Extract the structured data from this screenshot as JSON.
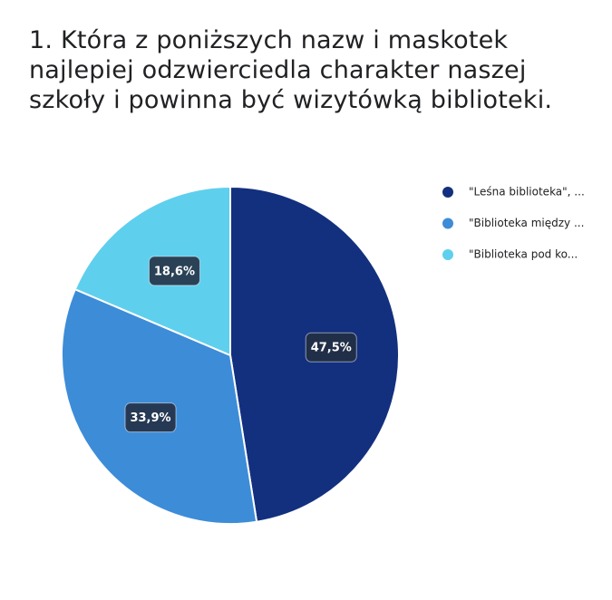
{
  "chart_data": {
    "type": "pie",
    "title": "1. Która z poniższych nazw i maskotek najlepiej odzwierciedla charakter naszej szkoły i powinna być wizytówką biblioteki.",
    "categories": [
      "\"Leśna biblioteka\", ...",
      "\"Biblioteka między ...",
      "\"Biblioteka pod ko..."
    ],
    "values": [
      47.5,
      33.9,
      18.6
    ],
    "value_labels": [
      "47,5%",
      "33,9%",
      "18,6%"
    ],
    "colors": [
      "#13307f",
      "#3d8cd8",
      "#5fcfee"
    ]
  }
}
